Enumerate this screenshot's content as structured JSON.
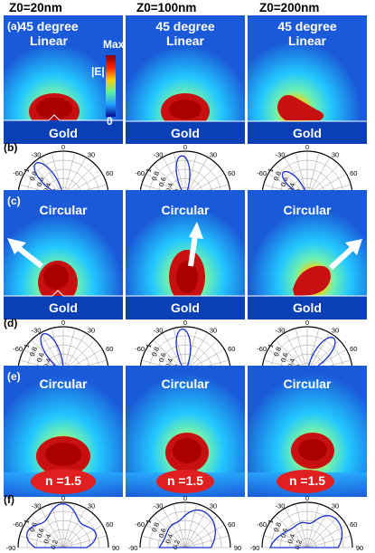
{
  "columns": [
    "Z0=20nm",
    "Z0=100nm",
    "Z0=200nm"
  ],
  "panel_labels": [
    "(a)",
    "(b)",
    "(c)",
    "(d)",
    "(e)",
    "(f)"
  ],
  "row_a": {
    "line1": "45 degree",
    "line2": "Linear",
    "substrate": "Gold"
  },
  "row_c": {
    "label": "Circular",
    "substrate": "Gold"
  },
  "row_e": {
    "label": "Circular",
    "substrate": "n =1.5"
  },
  "colorbar": {
    "max": "Max",
    "quantity": "|E|",
    "min": "0"
  },
  "polar_labels": {
    "top": "0",
    "left30": "-30",
    "left60": "-60",
    "left90": "-90",
    "right30": "30",
    "right60": "60",
    "right90": "90",
    "r1": "1",
    "r08": "0.8",
    "r06": "0.6",
    "r04": "0.4",
    "r02": "0.2"
  },
  "colors": {
    "field_background": "#1a5ad8",
    "hot": "#c01010",
    "arrow": "#ffffff",
    "pattern": "#1a2ecc"
  }
}
